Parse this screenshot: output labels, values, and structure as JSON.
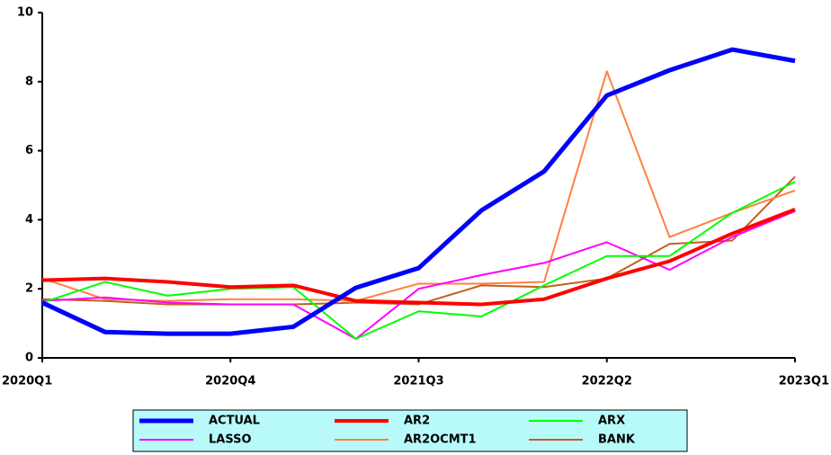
{
  "chart_data": {
    "type": "line",
    "categories": [
      "2020Q1",
      null,
      null,
      "2020Q4",
      null,
      null,
      "2021Q3",
      null,
      null,
      "2022Q2",
      null,
      null,
      "2023Q1"
    ],
    "ylim": [
      0,
      10
    ],
    "yticks": [
      0,
      2,
      4,
      6,
      8,
      10
    ],
    "series": [
      {
        "name": "ACTUAL",
        "color": "#0000ff",
        "values": [
          1.6,
          0.75,
          0.7,
          0.7,
          0.9,
          2.03,
          2.6,
          4.27,
          5.4,
          7.6,
          8.33,
          8.93,
          8.6
        ]
      },
      {
        "name": "AR2",
        "color": "#ff0000",
        "values": [
          2.25,
          2.3,
          2.2,
          2.05,
          2.1,
          1.65,
          1.6,
          1.55,
          1.7,
          2.3,
          2.8,
          3.6,
          4.3
        ]
      },
      {
        "name": "ARX",
        "color": "#00ff00",
        "values": [
          1.6,
          2.2,
          1.8,
          2.0,
          2.05,
          0.55,
          1.35,
          1.2,
          2.1,
          2.95,
          2.95,
          4.2,
          5.1
        ]
      },
      {
        "name": "LASSO",
        "color": "#ff00ff",
        "values": [
          1.65,
          1.75,
          1.6,
          1.55,
          1.55,
          0.55,
          2.0,
          2.4,
          2.75,
          3.35,
          2.55,
          3.5,
          4.25
        ]
      },
      {
        "name": "AR2OCMT1",
        "color": "#ff8040",
        "values": [
          2.3,
          1.7,
          1.65,
          1.7,
          1.7,
          1.65,
          2.15,
          2.15,
          2.2,
          8.3,
          3.5,
          4.2,
          4.85
        ]
      },
      {
        "name": "BANK",
        "color": "#c06020",
        "values": [
          1.7,
          1.65,
          1.55,
          1.55,
          1.55,
          1.6,
          1.55,
          2.1,
          2.05,
          2.3,
          3.3,
          3.4,
          5.25
        ]
      }
    ]
  }
}
